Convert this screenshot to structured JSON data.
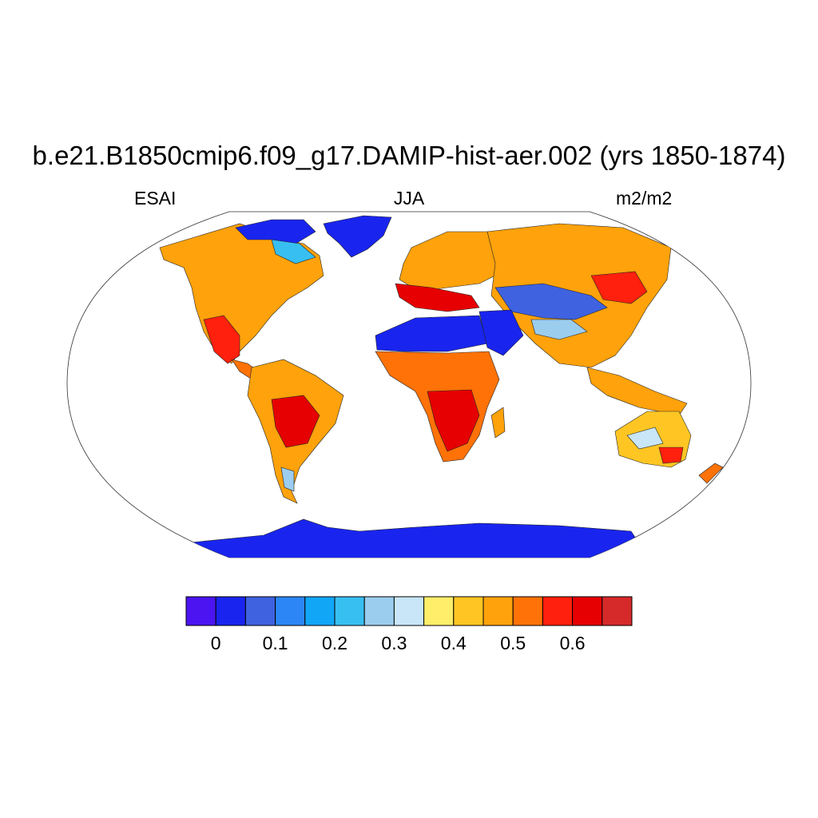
{
  "title": "b.e21.B1850cmip6.f09_g17.DAMIP-hist-aer.002 (yrs 1850-1874)",
  "subtitles": {
    "left": "ESAI",
    "center": "JJA",
    "right": "m2/m2"
  },
  "colorbar": {
    "colors": [
      "#4b14f0",
      "#1925ee",
      "#3e62e0",
      "#2c86f5",
      "#12a6f7",
      "#38bff2",
      "#9bcdee",
      "#c8e6f8",
      "#ffee6a",
      "#ffc623",
      "#ffa20b",
      "#ff7208",
      "#ff200d",
      "#e60002",
      "#d62a2a"
    ],
    "tick_labels": [
      "0",
      "0.1",
      "0.2",
      "0.3",
      "0.4",
      "0.5",
      "0.6"
    ],
    "tick_boundaries": [
      1,
      3,
      5,
      7,
      9,
      11,
      13
    ]
  }
}
